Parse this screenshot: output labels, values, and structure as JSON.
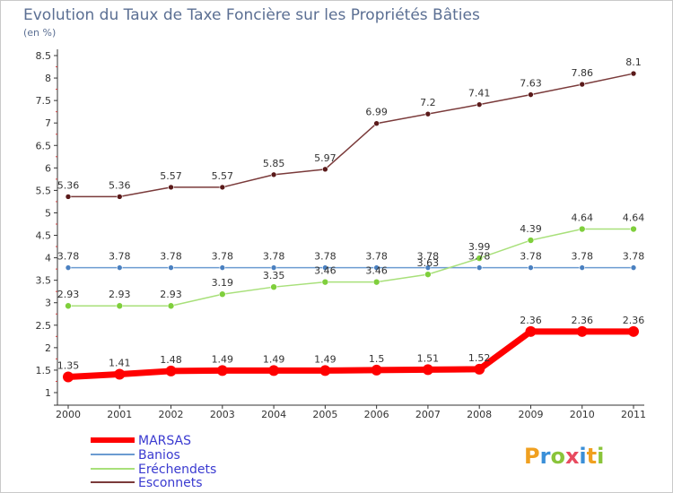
{
  "chart_data": {
    "type": "line",
    "title": "Evolution du Taux de Taxe Foncière sur les Propriétés Bâties",
    "ylabel": "(en %)",
    "xlabel": "",
    "categories": [
      "2000",
      "2001",
      "2002",
      "2003",
      "2004",
      "2005",
      "2006",
      "2007",
      "2008",
      "2009",
      "2010",
      "2011"
    ],
    "y_ticks": [
      "1",
      "1.5",
      "2",
      "2.5",
      "3",
      "3.5",
      "4",
      "4.5",
      "5",
      "5.5",
      "6",
      "6.5",
      "7",
      "7.5",
      "8",
      "8.5"
    ],
    "ylim": [
      1,
      8.5
    ],
    "grid": false,
    "legend_position": "bottom-left",
    "series": [
      {
        "name": "MARSAS",
        "color": "#ff0000",
        "marker": "#ff0000",
        "values": [
          1.35,
          1.41,
          1.48,
          1.49,
          1.49,
          1.49,
          1.5,
          1.51,
          1.52,
          2.36,
          2.36,
          2.36
        ],
        "labels": [
          "1.35",
          "1.41",
          "1.48",
          "1.49",
          "1.49",
          "1.49",
          "1.5",
          "1.51",
          "1.52",
          "2.36",
          "2.36",
          "2.36"
        ]
      },
      {
        "name": "Banios",
        "color": "#6b9bd1",
        "marker": "#4a80c0",
        "values": [
          3.78,
          3.78,
          3.78,
          3.78,
          3.78,
          3.78,
          3.78,
          3.78,
          3.78,
          3.78,
          3.78,
          3.78
        ],
        "labels": [
          "3.78",
          "3.78",
          "3.78",
          "3.78",
          "3.78",
          "3.78",
          "3.78",
          "3.78",
          "3.78",
          "3.78",
          "3.78",
          "3.78"
        ]
      },
      {
        "name": "Eréchendets",
        "color": "#a8e07a",
        "marker": "#7fcf3c",
        "values": [
          2.93,
          2.93,
          2.93,
          3.19,
          3.35,
          3.46,
          3.46,
          3.63,
          3.99,
          4.39,
          4.64,
          4.64
        ],
        "labels": [
          "2.93",
          "2.93",
          "2.93",
          "3.19",
          "3.35",
          "3.46",
          "3.46",
          "3.63",
          "3.99",
          "4.39",
          "4.64",
          "4.64"
        ]
      },
      {
        "name": "Esconnets",
        "color": "#7a3a3a",
        "marker": "#5a1a1a",
        "values": [
          5.36,
          5.36,
          5.57,
          5.57,
          5.85,
          5.97,
          6.99,
          7.2,
          7.41,
          7.63,
          7.86,
          8.1
        ],
        "labels": [
          "5.36",
          "5.36",
          "5.57",
          "5.57",
          "5.85",
          "5.97",
          "6.99",
          "7.2",
          "7.41",
          "7.63",
          "7.86",
          "8.1"
        ]
      }
    ]
  },
  "legend": {
    "items": [
      "MARSAS",
      "Banios",
      "Eréchendets",
      "Esconnets"
    ],
    "text_color": "#3a3ad0"
  },
  "brand": {
    "logo_text": "Proxiti"
  }
}
